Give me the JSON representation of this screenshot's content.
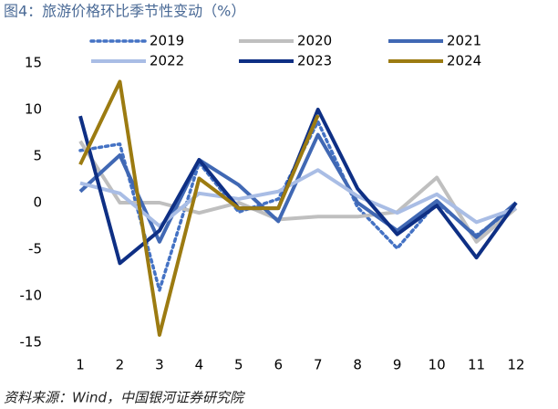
{
  "chart_data": {
    "type": "line",
    "title": "图4：旅游价格环比季节性变动（%）",
    "source": "资料来源：Wind，中国银河证券研究院",
    "categories": [
      "1",
      "2",
      "3",
      "4",
      "5",
      "6",
      "7",
      "8",
      "9",
      "10",
      "11",
      "12"
    ],
    "series": [
      {
        "name": "2019",
        "color": "#4472c4",
        "dash": "dotted",
        "values": [
          5.6,
          6.3,
          -9.4,
          4.3,
          -1,
          0.4,
          8.7,
          -0.5,
          -4.9,
          0,
          -3.5,
          -0.4
        ]
      },
      {
        "name": "2020",
        "color": "#bfbfbf",
        "dash": "solid",
        "values": [
          6.6,
          0,
          0,
          -1.1,
          0,
          -1.8,
          -1.5,
          -1.5,
          -1,
          2.7,
          -4.2,
          -0.6
        ]
      },
      {
        "name": "2021",
        "color": "#4068b4",
        "dash": "solid",
        "values": [
          1.2,
          5.1,
          -4.2,
          4.6,
          1.9,
          -2,
          7.3,
          0,
          -3,
          0.2,
          -3.7,
          0
        ]
      },
      {
        "name": "2022",
        "color": "#a9bde5",
        "dash": "solid",
        "values": [
          2.1,
          1,
          -2.5,
          1,
          0.4,
          1.2,
          3.5,
          0.7,
          -1.1,
          0.9,
          -2.1,
          -0.6
        ]
      },
      {
        "name": "2023",
        "color": "#0e2f84",
        "dash": "solid",
        "values": [
          9.3,
          -6.5,
          -3,
          4.6,
          -0.6,
          -0.6,
          10,
          1.5,
          -3.4,
          -0.3,
          -5.9,
          0
        ]
      },
      {
        "name": "2024",
        "color": "#9c7b11",
        "dash": "solid",
        "values": [
          4.1,
          13,
          -14.2,
          2.6,
          -0.6,
          -0.6,
          9.4,
          null,
          null,
          null,
          null,
          null
        ]
      }
    ],
    "ylim": [
      -15,
      15
    ],
    "yticks": [
      -15,
      -10,
      -5,
      0,
      5,
      10,
      15
    ],
    "grid": false,
    "legend": "top"
  }
}
